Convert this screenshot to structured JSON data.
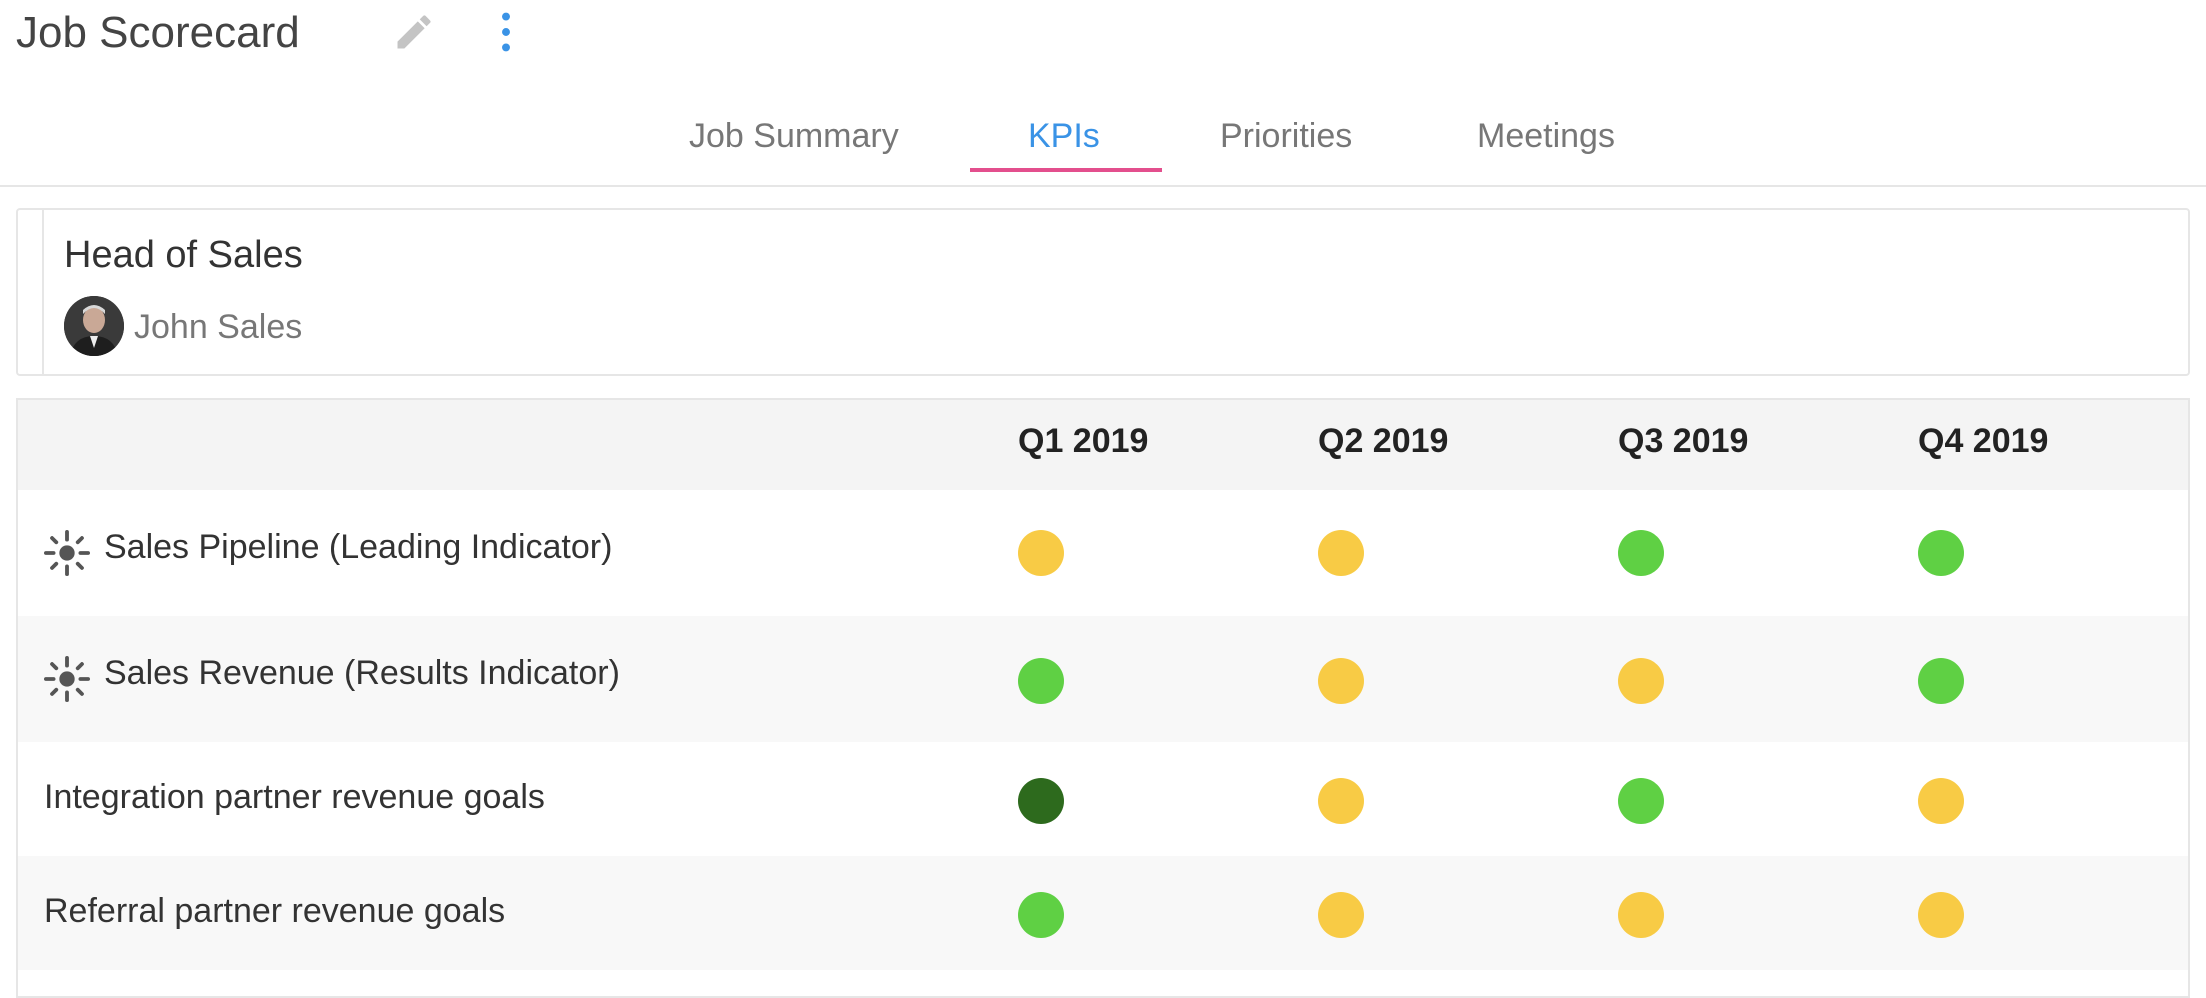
{
  "header": {
    "title": "Job Scorecard",
    "edit_icon": "pencil-icon",
    "more_icon": "vertical-ellipsis-icon"
  },
  "tabs": [
    {
      "label": "Job Summary",
      "active": false
    },
    {
      "label": "KPIs",
      "active": true
    },
    {
      "label": "Priorities",
      "active": false
    },
    {
      "label": "Meetings",
      "active": false
    }
  ],
  "job": {
    "title": "Head of Sales",
    "owner": "John Sales"
  },
  "table": {
    "quarters": [
      "Q1 2019",
      "Q2 2019",
      "Q3 2019",
      "Q4 2019"
    ],
    "rows": [
      {
        "label": "Sales Pipeline (Leading Indicator)",
        "icon": "sun-indicator-icon",
        "statuses": [
          "yellow",
          "yellow",
          "green",
          "green"
        ]
      },
      {
        "label": "Sales Revenue (Results Indicator)",
        "icon": "sun-indicator-icon",
        "statuses": [
          "green",
          "yellow",
          "yellow",
          "green"
        ]
      },
      {
        "label": "Integration partner revenue goals",
        "icon": "",
        "statuses": [
          "dark-green",
          "yellow",
          "green",
          "yellow"
        ]
      },
      {
        "label": "Referral partner revenue goals",
        "icon": "",
        "statuses": [
          "green",
          "yellow",
          "yellow",
          "yellow"
        ]
      }
    ]
  },
  "colors": {
    "accent": "#3a93e6",
    "tab_underline": "#e34f8d",
    "yellow": "#f8cb45",
    "green": "#5fd044",
    "dark-green": "#2d6a1d"
  }
}
